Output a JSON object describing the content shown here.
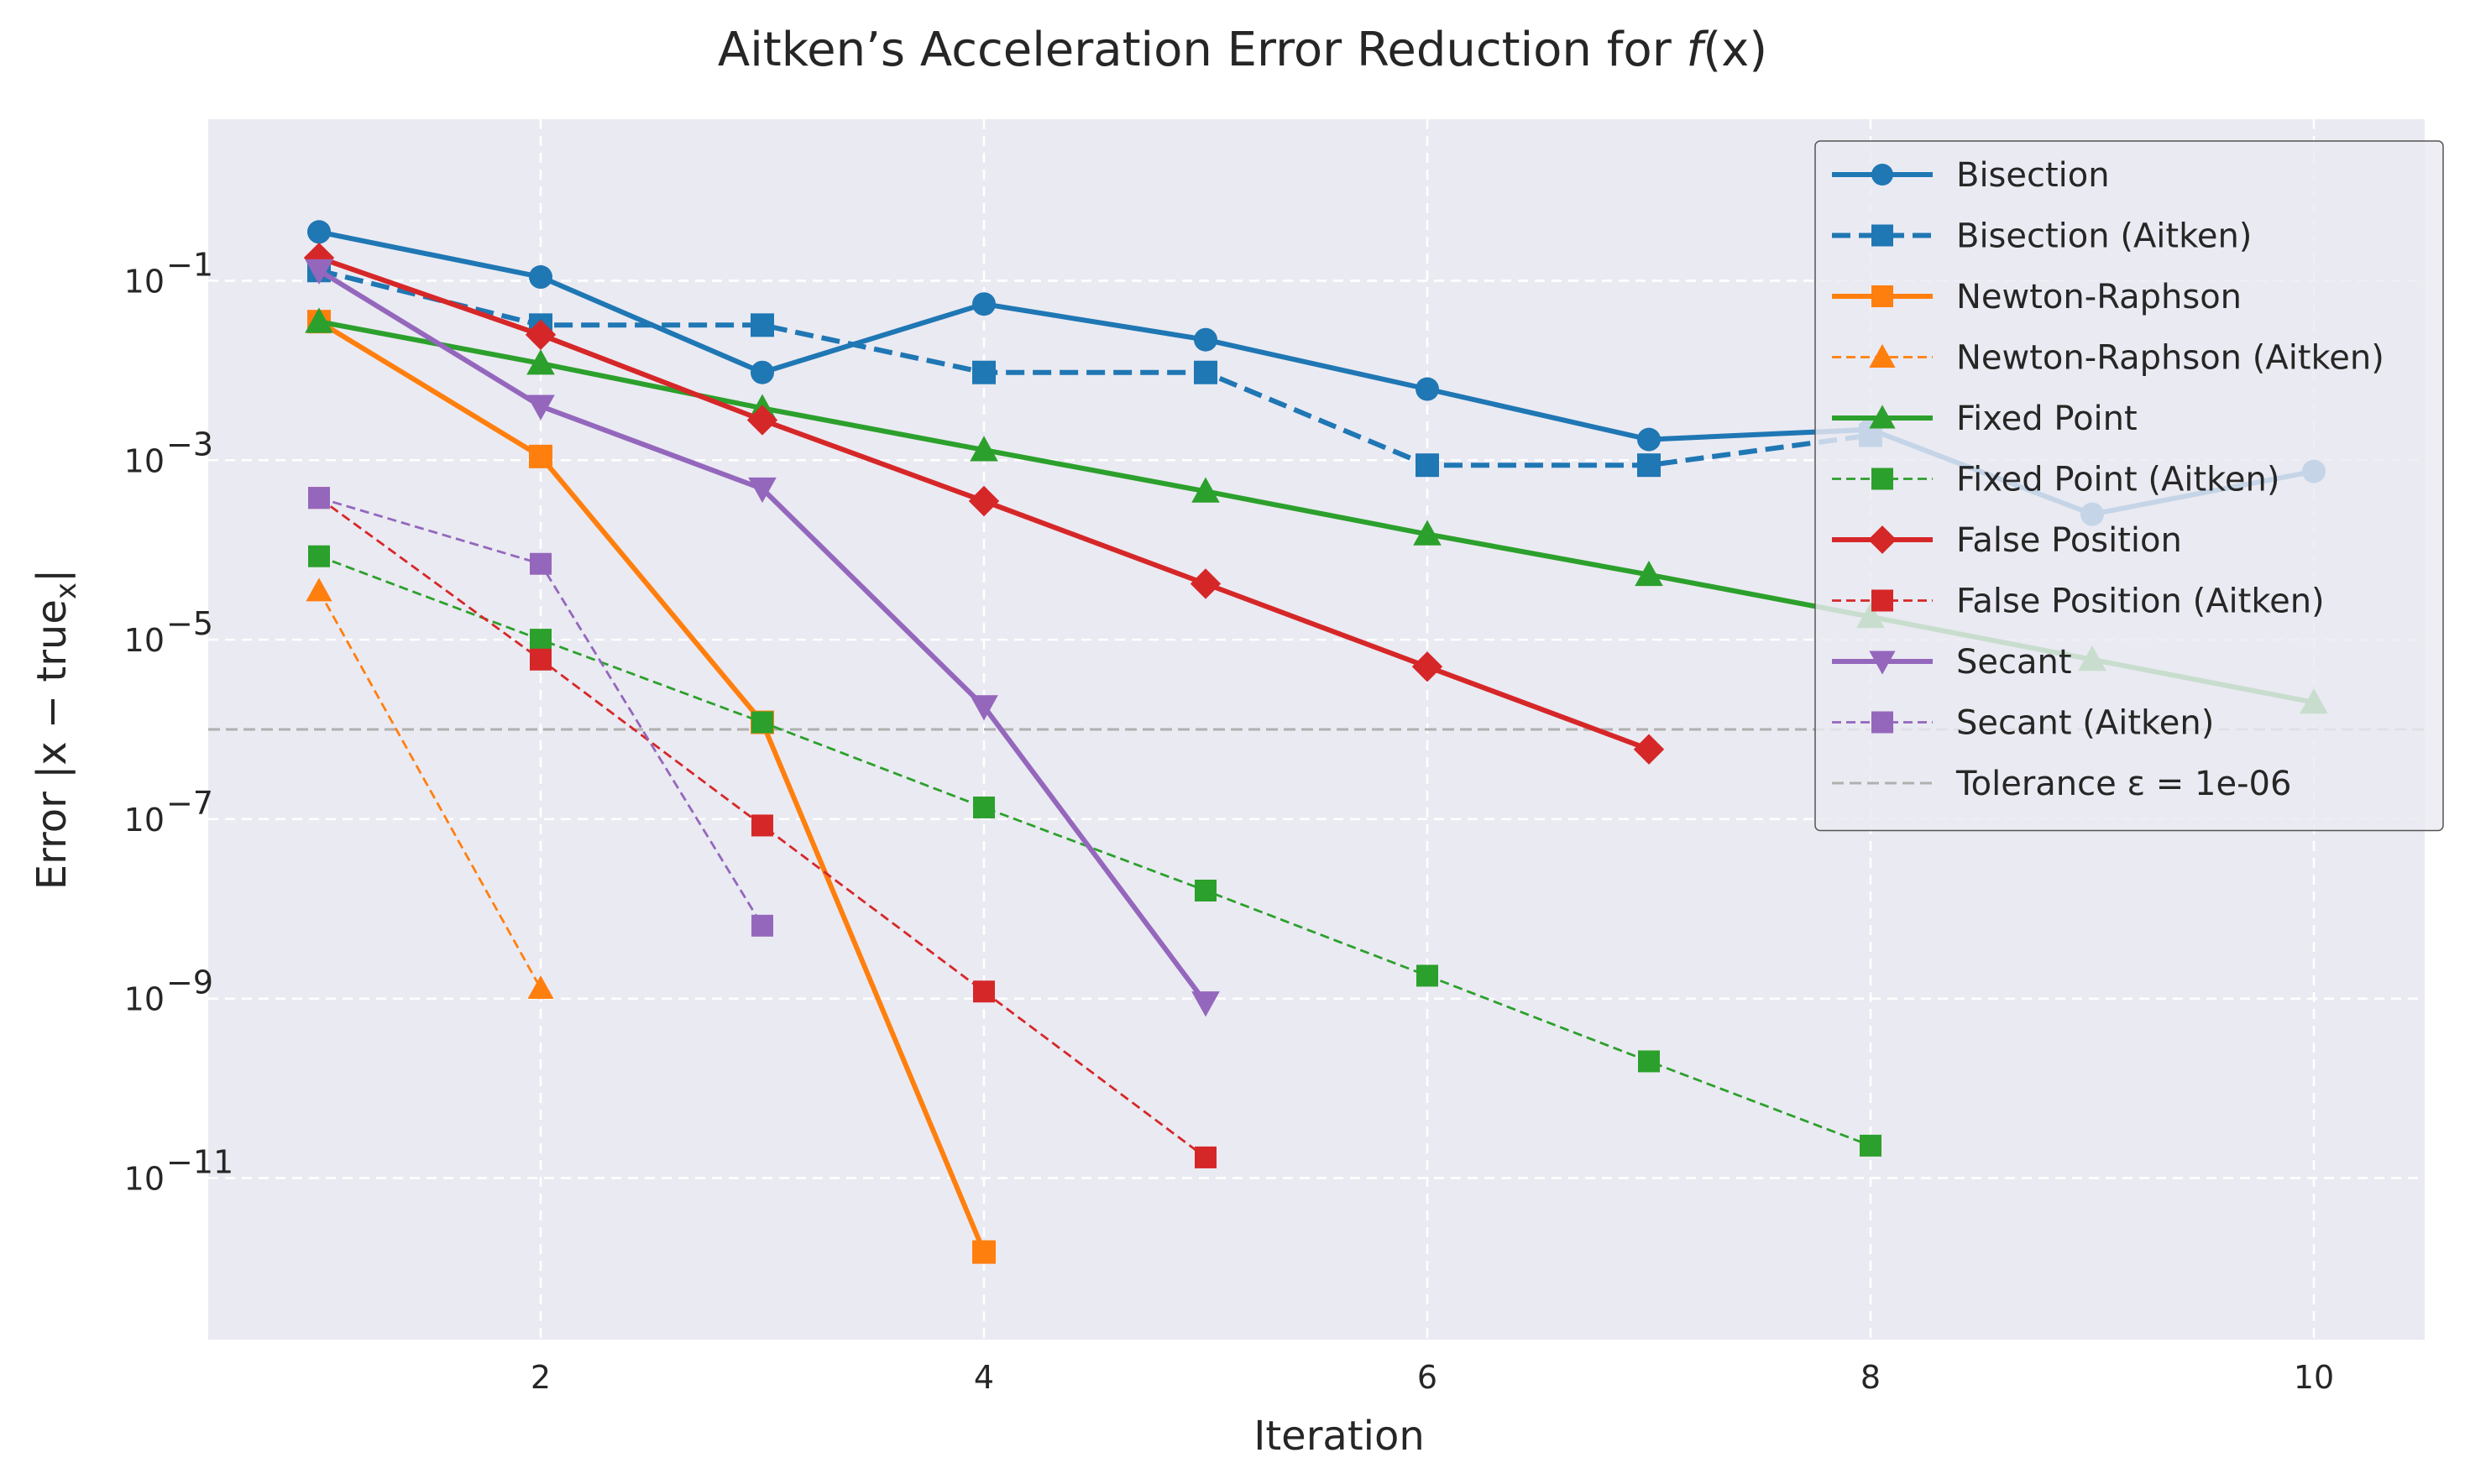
{
  "chart_data": {
    "type": "line",
    "title": "Aitken’s Acceleration Error Reduction for f(x)",
    "title_parts": {
      "prefix": "Aitken’s Acceleration Error Reduction for ",
      "fn": "f",
      "arg": "(x)"
    },
    "xlabel": "Iteration",
    "ylabel": "Error |x − true",
    "ylabel_sub": "x",
    "ylabel_end": "|",
    "y_scale": "log",
    "xlim": [
      0.5,
      10.5
    ],
    "ylim_exponent": [
      -12.8,
      0.8
    ],
    "x_ticks": [
      2,
      4,
      6,
      8,
      10
    ],
    "y_ticks": [
      {
        "exp": -11,
        "base": "10",
        "sup": "−11"
      },
      {
        "exp": -9,
        "base": "10",
        "sup": "−9"
      },
      {
        "exp": -7,
        "base": "10",
        "sup": "−7"
      },
      {
        "exp": -5,
        "base": "10",
        "sup": "−5"
      },
      {
        "exp": -3,
        "base": "10",
        "sup": "−3"
      },
      {
        "exp": -1,
        "base": "10",
        "sup": "−1"
      }
    ],
    "grid": true,
    "legend_position": "top-right",
    "tolerance": {
      "value": 1e-06,
      "label": "Tolerance ε = 1e-06",
      "color": "#b0b0b0"
    },
    "series": [
      {
        "name": "Bisection",
        "color": "#1f77b4",
        "marker": "circle",
        "style": "solid",
        "width": "thick",
        "x": [
          1,
          2,
          3,
          4,
          5,
          6,
          7,
          8,
          9,
          10
        ],
        "y": [
          0.35,
          0.11,
          0.0095,
          0.055,
          0.022,
          0.0062,
          0.0017,
          0.0022,
          0.00025,
          0.00075
        ]
      },
      {
        "name": "Bisection (Aitken)",
        "color": "#1f77b4",
        "marker": "square",
        "style": "dashed",
        "width": "thick",
        "x": [
          1,
          2,
          3,
          4,
          5,
          6,
          7,
          8
        ],
        "y": [
          0.13,
          0.032,
          0.032,
          0.0095,
          0.0095,
          0.00088,
          0.00088,
          0.0019
        ]
      },
      {
        "name": "Newton-Raphson",
        "color": "#ff7f0e",
        "marker": "square",
        "style": "solid",
        "width": "thick",
        "x": [
          1,
          2,
          3,
          4
        ],
        "y": [
          0.035,
          0.0011,
          1.2e-06,
          1.5e-12
        ]
      },
      {
        "name": "Newton-Raphson (Aitken)",
        "color": "#ff7f0e",
        "marker": "triangle-up",
        "style": "dashed",
        "width": "thin",
        "x": [
          1,
          2
        ],
        "y": [
          3.5e-05,
          1.3e-09
        ]
      },
      {
        "name": "Fixed Point",
        "color": "#2ca02c",
        "marker": "triangle-up",
        "style": "solid",
        "width": "thick",
        "x": [
          1,
          2,
          3,
          4,
          5,
          6,
          7,
          8,
          9,
          10
        ],
        "y": [
          0.035,
          0.012,
          0.0038,
          0.0013,
          0.00045,
          0.00015,
          5.3e-05,
          1.8e-05,
          6e-06,
          2e-06
        ]
      },
      {
        "name": "Fixed Point (Aitken)",
        "color": "#2ca02c",
        "marker": "square",
        "style": "dashed",
        "width": "thin",
        "x": [
          1,
          2,
          3,
          4,
          5,
          6,
          7,
          8
        ],
        "y": [
          8.5e-05,
          1e-05,
          1.2e-06,
          1.35e-07,
          1.6e-08,
          1.8e-09,
          2e-10,
          2.3e-11
        ]
      },
      {
        "name": "False Position",
        "color": "#d62728",
        "marker": "diamond",
        "style": "solid",
        "width": "thick",
        "x": [
          1,
          2,
          3,
          4,
          5,
          6,
          7
        ],
        "y": [
          0.18,
          0.025,
          0.0028,
          0.00035,
          4.2e-05,
          5e-06,
          6e-07
        ]
      },
      {
        "name": "False Position (Aitken)",
        "color": "#d62728",
        "marker": "square",
        "style": "dashed",
        "width": "thin",
        "x": [
          1,
          2,
          3,
          4,
          5
        ],
        "y": [
          0.00038,
          6e-06,
          8.5e-08,
          1.2e-09,
          1.7e-11
        ]
      },
      {
        "name": "Secant",
        "color": "#9467bd",
        "marker": "triangle-down",
        "style": "solid",
        "width": "thick",
        "x": [
          1,
          2,
          3,
          4,
          5
        ],
        "y": [
          0.13,
          0.004,
          0.00048,
          1.8e-06,
          9e-10
        ]
      },
      {
        "name": "Secant (Aitken)",
        "color": "#9467bd",
        "marker": "square",
        "style": "dashed",
        "width": "thin",
        "x": [
          1,
          2,
          3
        ],
        "y": [
          0.00038,
          7e-05,
          6.5e-09
        ]
      }
    ]
  }
}
